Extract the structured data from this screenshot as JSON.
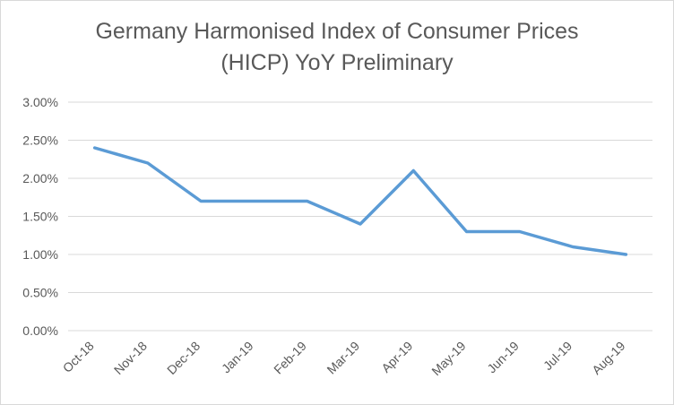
{
  "chart_data": {
    "type": "line",
    "title_line1": "Germany Harmonised Index of Consumer Prices",
    "title_line2": "(HICP) YoY  Preliminary",
    "xlabel": "",
    "ylabel": "",
    "categories": [
      "Oct-18",
      "Nov-18",
      "Dec-18",
      "Jan-19",
      "Feb-19",
      "Mar-19",
      "Apr-19",
      "May-19",
      "Jun-19",
      "Jul-19",
      "Aug-19"
    ],
    "series": [
      {
        "values": [
          2.4,
          2.2,
          1.7,
          1.7,
          1.7,
          1.4,
          2.1,
          1.3,
          1.3,
          1.1,
          1.0
        ],
        "color": "#5b9bd5"
      }
    ],
    "y_ticks": [
      "0.00%",
      "0.50%",
      "1.00%",
      "1.50%",
      "2.00%",
      "2.50%",
      "3.00%"
    ],
    "ylim": [
      0,
      3
    ],
    "grid": true,
    "legend": "none"
  }
}
